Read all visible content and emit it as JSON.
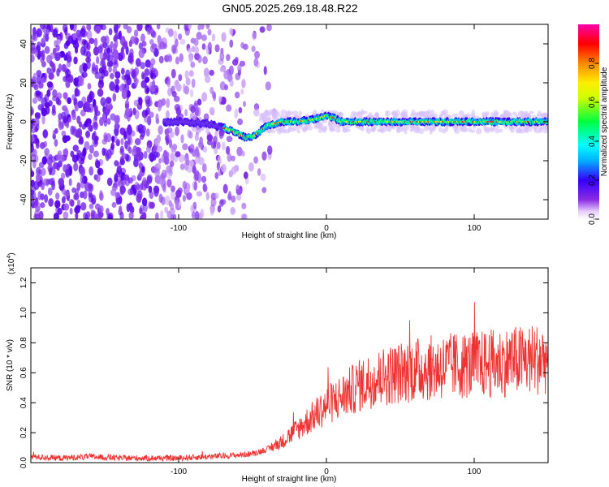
{
  "title": "GN05.2025.269.18.48.R22",
  "chart_data": [
    {
      "type": "heatmap",
      "name": "spectrogram",
      "xlabel": "Height of straight line (km)",
      "ylabel": "Frequency (Hz)",
      "xlim": [
        -200,
        150
      ],
      "ylim": [
        -50,
        50
      ],
      "xticks": [
        -100,
        0,
        100
      ],
      "yticks": [
        -40,
        -20,
        0,
        20,
        40
      ],
      "xtick_labels": [
        "-100",
        "0",
        "100"
      ],
      "ytick_labels": [
        "-40",
        "-20",
        "0",
        "20",
        "40"
      ],
      "ridge": {
        "description_points_x": [
          -100,
          -80,
          -70,
          -60,
          -55,
          -50,
          -45,
          -40,
          -30,
          -20,
          -10,
          0,
          5,
          10,
          20,
          50,
          100,
          150
        ],
        "frequency_hz": [
          0,
          -1,
          -3,
          -6,
          -8,
          -8,
          -5,
          -2,
          0,
          0,
          1,
          3,
          2,
          0,
          0,
          0,
          0,
          0
        ]
      },
      "noise_region_x": [
        -200,
        -45
      ]
    },
    {
      "type": "colorbar",
      "name": "amplitude-scale",
      "label": "Normalized spectral amplitude",
      "range": [
        0,
        1
      ],
      "ticks": [
        0.0,
        0.2,
        0.4,
        0.6,
        0.8
      ],
      "tick_labels": [
        "0.0",
        "0.2",
        "0.4",
        "0.6",
        "0.8"
      ]
    },
    {
      "type": "line",
      "name": "snr",
      "xlabel": "Height of straight line (km)",
      "ylabel": "SNR (10 * v/v)",
      "scale_label": "(x10",
      "scale_exp": "4",
      "xlim": [
        -200,
        150
      ],
      "ylim": [
        0,
        1.3
      ],
      "xticks": [
        -100,
        0,
        100
      ],
      "yticks": [
        0.0,
        0.2,
        0.4,
        0.6,
        0.8,
        1.0,
        1.2
      ],
      "xtick_labels": [
        "-100",
        "0",
        "100"
      ],
      "ytick_labels": [
        "0.0",
        "0.2",
        "0.4",
        "0.6",
        "0.8",
        "1.0",
        "1.2"
      ],
      "color": "#ee3333",
      "series": [
        {
          "name": "SNR",
          "x": [
            -200,
            -180,
            -160,
            -140,
            -120,
            -100,
            -80,
            -60,
            -50,
            -40,
            -30,
            -20,
            -10,
            0,
            10,
            20,
            30,
            40,
            50,
            60,
            70,
            80,
            90,
            100,
            110,
            120,
            130,
            140,
            150
          ],
          "y": [
            0.04,
            0.03,
            0.04,
            0.03,
            0.03,
            0.03,
            0.04,
            0.05,
            0.06,
            0.09,
            0.14,
            0.22,
            0.3,
            0.38,
            0.44,
            0.5,
            0.55,
            0.58,
            0.6,
            0.62,
            0.63,
            0.64,
            0.65,
            0.65,
            0.66,
            0.67,
            0.68,
            0.69,
            0.7
          ]
        }
      ]
    }
  ]
}
